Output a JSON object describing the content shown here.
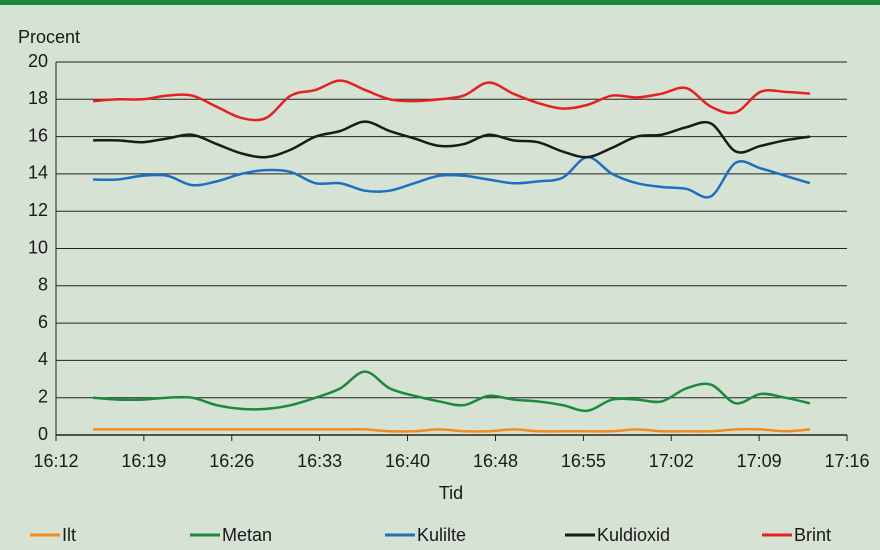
{
  "chart_data": {
    "type": "line",
    "y_label": "Procent",
    "x_label": "Tid",
    "x": [
      975,
      977,
      979,
      981,
      983,
      985,
      987,
      989,
      991,
      993,
      995,
      997,
      999,
      1001,
      1003,
      1005,
      1007,
      1009,
      1011,
      1013,
      1015,
      1017,
      1019,
      1021,
      1023,
      1025,
      1027,
      1029,
      1031,
      1033
    ],
    "series": [
      {
        "name": "Ilt",
        "color": "#f28c1e",
        "values": [
          0.3,
          0.3,
          0.3,
          0.3,
          0.3,
          0.3,
          0.3,
          0.3,
          0.3,
          0.3,
          0.3,
          0.3,
          0.2,
          0.2,
          0.3,
          0.2,
          0.2,
          0.3,
          0.2,
          0.2,
          0.2,
          0.2,
          0.3,
          0.2,
          0.2,
          0.2,
          0.3,
          0.3,
          0.2,
          0.3
        ]
      },
      {
        "name": "Metan",
        "color": "#1a8a3c",
        "values": [
          2.0,
          1.9,
          1.9,
          2.0,
          2.0,
          1.6,
          1.4,
          1.4,
          1.6,
          2.0,
          2.5,
          3.4,
          2.5,
          2.1,
          1.8,
          1.6,
          2.1,
          1.9,
          1.8,
          1.6,
          1.3,
          1.9,
          1.9,
          1.8,
          2.5,
          2.7,
          1.7,
          2.2,
          2.0,
          1.7
        ]
      },
      {
        "name": "Kulilte",
        "color": "#1f6fc0",
        "values": [
          13.7,
          13.7,
          13.9,
          13.9,
          13.4,
          13.6,
          14.0,
          14.2,
          14.1,
          13.5,
          13.5,
          13.1,
          13.1,
          13.5,
          13.9,
          13.9,
          13.7,
          13.5,
          13.6,
          13.8,
          14.9,
          14.0,
          13.5,
          13.3,
          13.2,
          12.8,
          14.6,
          14.3,
          13.9,
          13.5
        ]
      },
      {
        "name": "Kuldioxid",
        "color": "#1a1a1a",
        "values": [
          15.8,
          15.8,
          15.7,
          15.9,
          16.1,
          15.6,
          15.1,
          14.9,
          15.3,
          16.0,
          16.3,
          16.8,
          16.3,
          15.9,
          15.5,
          15.6,
          16.1,
          15.8,
          15.7,
          15.2,
          14.9,
          15.4,
          16.0,
          16.1,
          16.5,
          16.7,
          15.2,
          15.5,
          15.8,
          16.0
        ]
      },
      {
        "name": "Brint",
        "color": "#e62020",
        "values": [
          17.9,
          18.0,
          18.0,
          18.2,
          18.2,
          17.6,
          17.0,
          17.0,
          18.2,
          18.5,
          19.0,
          18.5,
          18.0,
          17.9,
          18.0,
          18.2,
          18.9,
          18.3,
          17.8,
          17.5,
          17.7,
          18.2,
          18.1,
          18.3,
          18.6,
          17.6,
          17.3,
          18.4,
          18.4,
          18.3
        ]
      }
    ],
    "xlim": [
      972,
      1036
    ],
    "xticks": [
      {
        "value": 972,
        "label": "16:12"
      },
      {
        "value": 979.11,
        "label": "16:19"
      },
      {
        "value": 986.22,
        "label": "16:26"
      },
      {
        "value": 993.33,
        "label": "16:33"
      },
      {
        "value": 1000.44,
        "label": "16:40"
      },
      {
        "value": 1007.56,
        "label": "16:48"
      },
      {
        "value": 1014.67,
        "label": "16:55"
      },
      {
        "value": 1021.78,
        "label": "17:02"
      },
      {
        "value": 1028.89,
        "label": "17:09"
      },
      {
        "value": 1036,
        "label": "17:16"
      }
    ],
    "ylim": [
      0,
      20
    ],
    "yticks": [
      0,
      2,
      4,
      6,
      8,
      10,
      12,
      14,
      16,
      18,
      20
    ],
    "grid": true
  }
}
